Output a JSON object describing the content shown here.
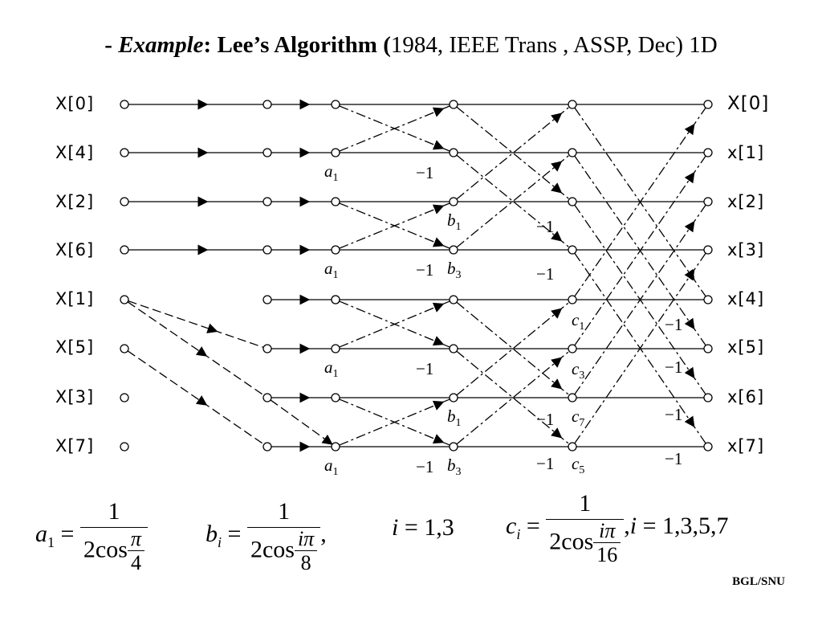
{
  "title": {
    "dash": "- ",
    "example": "Example",
    "colon": ": ",
    "algo": "Lee’s Algorithm (",
    "rest": "1984, IEEE Trans , ASSP, Dec) 1D"
  },
  "inputs": [
    "X[0]",
    "X[4]",
    "X[2]",
    "X[6]",
    "X[1]",
    "X[5]",
    "X[3]",
    "X[7]"
  ],
  "outputs": [
    "X[0]",
    "x[1]",
    "x[2]",
    "x[3]",
    "x[4]",
    "x[5]",
    "x[6]",
    "x[7]"
  ],
  "coefficients": {
    "a": "a",
    "a_sub": "1",
    "b": "b",
    "b1_sub": "1",
    "b3_sub": "3",
    "c": "c",
    "c1_sub": "1",
    "c3_sub": "3",
    "c5_sub": "5",
    "c7_sub": "7",
    "minus_one": "−1"
  },
  "formulas": {
    "a_lhs": "a",
    "a_lhs_sub": "1",
    "eq": "=",
    "a_num": "1",
    "a_den_prefix": "2cos",
    "a_inner_num": "π",
    "a_inner_den": "4",
    "b_lhs": "b",
    "b_lhs_sub": "i",
    "b_num": "1",
    "b_den_prefix": "2cos",
    "b_inner_num": "iπ",
    "b_inner_den": "8",
    "b_tail": ",",
    "i_text": "i",
    "i_vals": "1,3",
    "c_lhs": "c",
    "c_lhs_sub": "i",
    "c_num": "1",
    "c_den_prefix": "2cos",
    "c_inner_num": "iπ",
    "c_inner_den": "16",
    "c_tail": ",",
    "c_i": "i",
    "c_vals": "1,3,5,7"
  },
  "footer": "BGL/SNU"
}
